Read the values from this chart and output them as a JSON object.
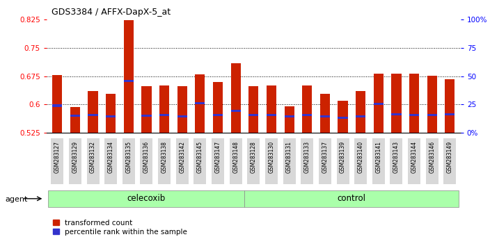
{
  "title": "GDS3384 / AFFX-DapX-5_at",
  "samples": [
    "GSM283127",
    "GSM283129",
    "GSM283132",
    "GSM283134",
    "GSM283135",
    "GSM283136",
    "GSM283138",
    "GSM283142",
    "GSM283145",
    "GSM283147",
    "GSM283148",
    "GSM283128",
    "GSM283130",
    "GSM283131",
    "GSM283133",
    "GSM283137",
    "GSM283139",
    "GSM283140",
    "GSM283141",
    "GSM283143",
    "GSM283144",
    "GSM283146",
    "GSM283149"
  ],
  "red_values": [
    0.679,
    0.593,
    0.635,
    0.628,
    0.823,
    0.648,
    0.651,
    0.648,
    0.68,
    0.66,
    0.71,
    0.649,
    0.651,
    0.596,
    0.65,
    0.628,
    0.61,
    0.635,
    0.681,
    0.682,
    0.682,
    0.676,
    0.667
  ],
  "blue_values": [
    0.597,
    0.57,
    0.572,
    0.568,
    0.663,
    0.57,
    0.572,
    0.568,
    0.603,
    0.572,
    0.584,
    0.572,
    0.572,
    0.568,
    0.572,
    0.568,
    0.565,
    0.568,
    0.602,
    0.574,
    0.572,
    0.572,
    0.574
  ],
  "n_celecoxib": 11,
  "n_control": 12,
  "y_min": 0.525,
  "y_max": 0.825,
  "y_ticks_left": [
    0.525,
    0.6,
    0.675,
    0.75,
    0.825
  ],
  "y_ticks_right_pos": [
    0.525,
    0.6,
    0.675,
    0.75,
    0.825
  ],
  "y_ticks_right_labels": [
    "0%",
    "25",
    "50",
    "75",
    "100%"
  ],
  "grid_values": [
    0.6,
    0.675,
    0.75
  ],
  "bar_color": "#cc2200",
  "blue_color": "#3333cc",
  "celecoxib_color": "#aaffaa",
  "control_color": "#aaffaa",
  "group_label_celecoxib": "celecoxib",
  "group_label_control": "control",
  "legend_red": "transformed count",
  "legend_blue": "percentile rank within the sample",
  "agent_label": "agent",
  "background_color": "#ffffff",
  "xticklabel_bg": "#dddddd"
}
